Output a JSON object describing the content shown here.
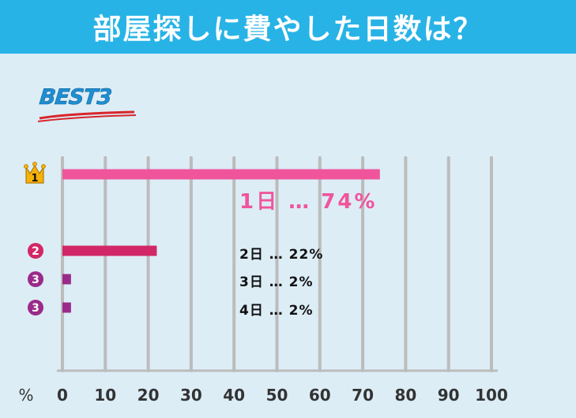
{
  "header": {
    "title": "部屋探しに費やした日数は？"
  },
  "badge": {
    "text": "BEST3"
  },
  "colors": {
    "header_bg": "#28b3e6",
    "background": "#dcedf6",
    "rank1": "#f0559c",
    "rank2": "#d22766",
    "rank3": "#9a2b8a",
    "grid": "#bcbcbc"
  },
  "chart_data": {
    "type": "bar",
    "orientation": "horizontal",
    "unit_label": "%",
    "xlim": [
      0,
      100
    ],
    "ticks": [
      "0",
      "10",
      "20",
      "30",
      "40",
      "50",
      "60",
      "70",
      "80",
      "90",
      "100"
    ],
    "grid": true,
    "bars": [
      {
        "rank": "1",
        "icon": "crown-icon",
        "value": 74,
        "label": "1日 … 74%"
      },
      {
        "rank": "2",
        "icon": "rank-circle-icon",
        "value": 22,
        "label": "2日 … 22%"
      },
      {
        "rank": "3",
        "icon": "rank-circle-icon",
        "value": 2,
        "label": "3日 … 2%"
      },
      {
        "rank": "3",
        "icon": "rank-circle-icon",
        "value": 2,
        "label": "4日 … 2%"
      }
    ]
  }
}
